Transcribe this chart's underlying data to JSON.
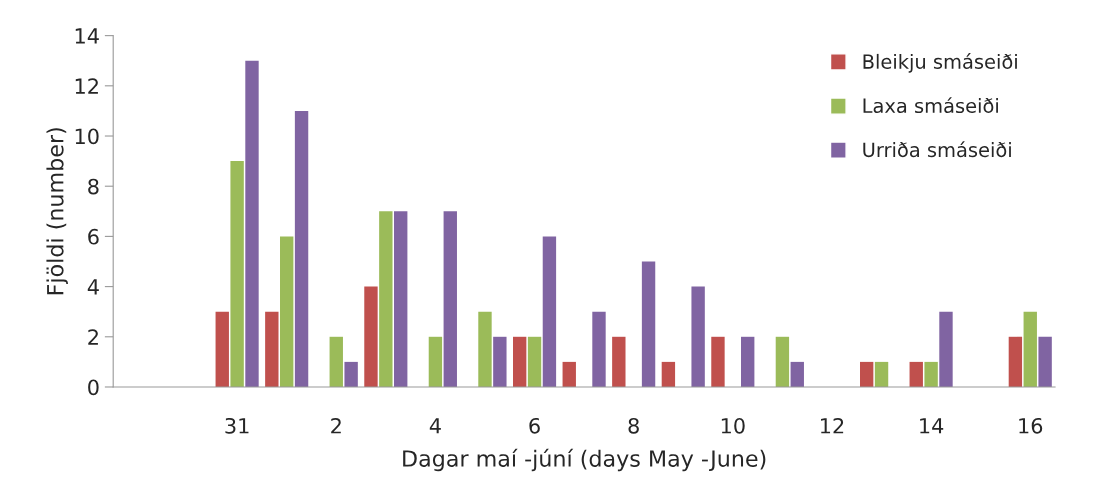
{
  "chart_data": {
    "type": "bar",
    "xlabel": "Dagar maí -júní (days May -June)",
    "ylabel": "Fjöldi (number)",
    "categories": [
      null,
      null,
      "31",
      null,
      "2",
      null,
      "4",
      null,
      "6",
      null,
      "8",
      null,
      "10",
      null,
      "12",
      null,
      "14",
      null,
      "16"
    ],
    "series": [
      {
        "name": "Bleikju smáseiði",
        "color": "#c0504d",
        "values": [
          null,
          null,
          3,
          3,
          null,
          4,
          null,
          null,
          2,
          1,
          2,
          1,
          2,
          null,
          null,
          1,
          1,
          null,
          2
        ]
      },
      {
        "name": "Laxa smáseiði",
        "color": "#9bbb59",
        "values": [
          null,
          null,
          9,
          6,
          2,
          7,
          2,
          3,
          2,
          null,
          null,
          null,
          null,
          2,
          null,
          1,
          1,
          null,
          3
        ]
      },
      {
        "name": "Urriða smáseiði",
        "color": "#8064a2",
        "values": [
          null,
          null,
          13,
          11,
          1,
          7,
          7,
          2,
          6,
          3,
          5,
          4,
          2,
          1,
          null,
          null,
          3,
          null,
          2
        ]
      }
    ],
    "ylim": [
      0,
      14
    ],
    "yticks": [
      0,
      2,
      4,
      6,
      8,
      10,
      12,
      14
    ],
    "grid": false,
    "legend": "top right"
  }
}
